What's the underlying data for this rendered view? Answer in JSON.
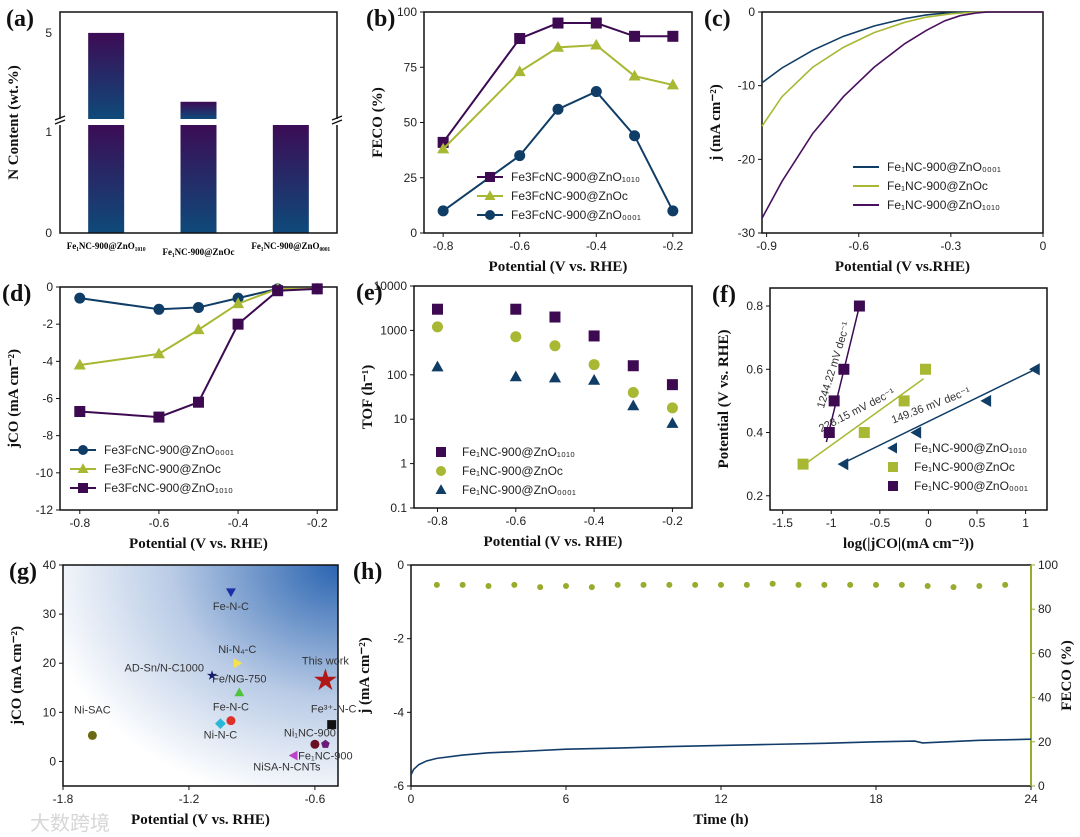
{
  "watermark": "大数跨境",
  "chart_data": [
    {
      "id": "a",
      "label": "(a)",
      "type": "bar",
      "ylabel": "N Content (wt.%)",
      "categories": [
        "Fe₁NC-900@ZnO₁₀₁₀",
        "Fe₁NC-900@ZnOc",
        "Fe₁NC-900@ZnO₀₀₀₁"
      ],
      "values": [
        5.0,
        2.6,
        1.1
      ],
      "yticks": [
        "0",
        "1",
        "5"
      ],
      "ylim": [
        0,
        5.3
      ],
      "axis_break": true,
      "colors": {
        "top": "#3d0b55",
        "bottom": "#0e4a7a"
      }
    },
    {
      "id": "b",
      "label": "(b)",
      "type": "line",
      "xlabel": "Potential (V vs. RHE)",
      "ylabel": "FECO (%)",
      "xlim": [
        -0.85,
        -0.15
      ],
      "ylim": [
        0,
        100
      ],
      "xticks": [
        -0.8,
        -0.6,
        -0.4,
        -0.2
      ],
      "yticks": [
        0,
        25,
        50,
        75,
        100
      ],
      "legend": "bottom-right",
      "series": [
        {
          "name": "Fe3FcNC-900@ZnO₁₀₁₀",
          "color": "#3d0a52",
          "marker": "square",
          "x": [
            -0.8,
            -0.6,
            -0.5,
            -0.4,
            -0.3,
            -0.2
          ],
          "y": [
            41,
            88,
            95,
            95,
            89,
            89
          ]
        },
        {
          "name": "Fe3FcNC-900@ZnOc",
          "color": "#a8b832",
          "marker": "triangle",
          "x": [
            -0.8,
            -0.6,
            -0.5,
            -0.4,
            -0.3,
            -0.2
          ],
          "y": [
            38,
            73,
            84,
            85,
            71,
            67
          ]
        },
        {
          "name": "Fe3FcNC-900@ZnO₀₀₀₁",
          "color": "#0f3d66",
          "marker": "circle",
          "x": [
            -0.8,
            -0.6,
            -0.5,
            -0.4,
            -0.3,
            -0.2
          ],
          "y": [
            10,
            35,
            56,
            64,
            44,
            10
          ]
        }
      ]
    },
    {
      "id": "c",
      "label": "(c)",
      "type": "line",
      "xlabel": "Potential (V vs.RHE)",
      "ylabel": "j (mA cm⁻²)",
      "xlim": [
        -0.915,
        0
      ],
      "ylim": [
        -30,
        0
      ],
      "xticks": [
        -0.9,
        -0.6,
        -0.3,
        0.0
      ],
      "yticks": [
        -30,
        -20,
        -10,
        0
      ],
      "legend": "bottom-right",
      "series": [
        {
          "name": "Fe₁NC-900@ZnO₀₀₀₁",
          "color": "#0f3d66",
          "marker": "none",
          "x": [
            -0.915,
            -0.85,
            -0.75,
            -0.65,
            -0.55,
            -0.45,
            -0.38,
            -0.32,
            -0.28,
            -0.2,
            0
          ],
          "y": [
            -9.6,
            -7.6,
            -5.2,
            -3.3,
            -1.9,
            -0.9,
            -0.4,
            -0.15,
            -0.05,
            0,
            0
          ]
        },
        {
          "name": "Fe₁NC-900@ZnOc",
          "color": "#a8b832",
          "marker": "none",
          "x": [
            -0.915,
            -0.85,
            -0.75,
            -0.65,
            -0.55,
            -0.45,
            -0.38,
            -0.3,
            -0.25,
            -0.2,
            0
          ],
          "y": [
            -15.5,
            -11.5,
            -7.5,
            -4.8,
            -2.8,
            -1.4,
            -0.7,
            -0.25,
            -0.1,
            0,
            0
          ]
        },
        {
          "name": "Fe₁NC-900@ZnO₁₀₁₀",
          "color": "#4a1060",
          "marker": "none",
          "x": [
            -0.915,
            -0.85,
            -0.75,
            -0.65,
            -0.55,
            -0.45,
            -0.38,
            -0.32,
            -0.27,
            -0.22,
            -0.18,
            0
          ],
          "y": [
            -28,
            -23,
            -16.5,
            -11.5,
            -7.5,
            -4.3,
            -2.5,
            -1.2,
            -0.5,
            -0.15,
            0,
            0
          ]
        }
      ]
    },
    {
      "id": "d",
      "label": "(d)",
      "type": "line",
      "xlabel": "Potential (V vs. RHE)",
      "ylabel": "jCO (mA cm⁻²)",
      "xlim": [
        -0.85,
        -0.15
      ],
      "ylim": [
        -12,
        0
      ],
      "xticks": [
        -0.8,
        -0.6,
        -0.4,
        -0.2
      ],
      "yticks": [
        -12,
        -10,
        -8,
        -6,
        -4,
        -2,
        0
      ],
      "legend": "bottom-left",
      "series": [
        {
          "name": "Fe3FcNC-900@ZnO₀₀₀₁",
          "color": "#0f3d66",
          "marker": "circle",
          "x": [
            -0.8,
            -0.6,
            -0.5,
            -0.4,
            -0.3,
            -0.2
          ],
          "y": [
            -0.6,
            -1.2,
            -1.1,
            -0.6,
            -0.1,
            -0.1
          ]
        },
        {
          "name": "Fe3FcNC-900@ZnOc",
          "color": "#a8b832",
          "marker": "triangle",
          "x": [
            -0.8,
            -0.6,
            -0.5,
            -0.4,
            -0.3,
            -0.2
          ],
          "y": [
            -4.2,
            -3.6,
            -2.3,
            -0.9,
            -0.1,
            -0.1
          ]
        },
        {
          "name": "Fe3FcNC-900@ZnO₁₀₁₀",
          "color": "#3d0a52",
          "marker": "square",
          "x": [
            -0.8,
            -0.6,
            -0.5,
            -0.4,
            -0.3,
            -0.2
          ],
          "y": [
            -6.7,
            -7.0,
            -6.2,
            -2.0,
            -0.2,
            -0.1
          ]
        }
      ]
    },
    {
      "id": "e",
      "label": "(e)",
      "type": "scatter",
      "xlabel": "Potential (V vs. RHE)",
      "ylabel": "TOF (h⁻¹)",
      "xlim": [
        -0.86,
        -0.15
      ],
      "ylim": [
        0.1,
        10000
      ],
      "yscale": "log",
      "xticks": [
        -0.8,
        -0.6,
        -0.4,
        -0.2
      ],
      "yticks": [
        "0.1",
        "1",
        "10",
        "100",
        "1000",
        "10000"
      ],
      "legend": "bottom-left",
      "series": [
        {
          "name": "Fe₁NC-900@ZnO₁₀₁₀",
          "color": "#3d0a52",
          "marker": "square",
          "x": [
            -0.8,
            -0.6,
            -0.5,
            -0.4,
            -0.3,
            -0.2
          ],
          "y": [
            3000,
            3000,
            2000,
            750,
            160,
            60
          ]
        },
        {
          "name": "Fe₁NC-900@ZnOc",
          "color": "#a8b832",
          "marker": "circle",
          "x": [
            -0.8,
            -0.6,
            -0.5,
            -0.4,
            -0.3,
            -0.2
          ],
          "y": [
            1200,
            720,
            450,
            170,
            40,
            18
          ]
        },
        {
          "name": "Fe₁NC-900@ZnO₀₀₀₁",
          "color": "#0f3d66",
          "marker": "triangle",
          "x": [
            -0.8,
            -0.6,
            -0.5,
            -0.4,
            -0.3,
            -0.2
          ],
          "y": [
            150,
            90,
            85,
            75,
            20,
            8
          ]
        }
      ]
    },
    {
      "id": "f",
      "label": "(f)",
      "type": "scatter",
      "xlabel": "log(|jCO|(mA cm⁻²))",
      "ylabel": "Potential (V vs. RHE)",
      "xlim": [
        -1.63,
        1.22
      ],
      "ylim": [
        0.155,
        0.857
      ],
      "xticks": [
        -1.5,
        -1.0,
        -0.5,
        0.0,
        0.5,
        1.0
      ],
      "yticks": [
        0.2,
        0.4,
        0.6,
        0.8
      ],
      "legend": "bottom-right",
      "series": [
        {
          "name": "Fe₁NC-900@ZnO₁₀₁₀",
          "color": "#0f3d66",
          "marker": "triangle-left",
          "x": [
            -0.87,
            -0.12,
            0.6,
            1.1
          ],
          "y": [
            0.3,
            0.4,
            0.5,
            0.6
          ],
          "fit": [
            [
              -0.9,
              0.3
            ],
            [
              1.1,
              0.6
            ]
          ],
          "annotation": "149.36 mV dec⁻¹",
          "ann_angle": -21
        },
        {
          "name": "Fe₁NC-900@ZnOc",
          "color": "#a8b832",
          "marker": "square",
          "x": [
            -1.29,
            -0.66,
            -0.25,
            -0.03
          ],
          "y": [
            0.3,
            0.4,
            0.5,
            0.6
          ],
          "fit": [
            [
              -1.27,
              0.3
            ],
            [
              -0.05,
              0.57
            ]
          ],
          "annotation": "228.15 mV dec⁻¹",
          "ann_angle": -27
        },
        {
          "name": "Fe₁NC-900@ZnO₀₀₀₁",
          "color": "#3d0a52",
          "marker": "square",
          "x": [
            -1.02,
            -0.97,
            -0.87,
            -0.71
          ],
          "y": [
            0.4,
            0.5,
            0.6,
            0.8
          ],
          "fit": [
            [
              -1.05,
              0.37
            ],
            [
              -0.71,
              0.8
            ]
          ],
          "annotation": "1244.22 mV dec⁻¹",
          "ann_angle": -73
        }
      ]
    },
    {
      "id": "g",
      "label": "(g)",
      "type": "scatter",
      "xlabel": "Potential (V vs. RHE)",
      "ylabel": "jCO (mA cm⁻²)",
      "xlim": [
        -1.8,
        -0.49
      ],
      "ylim": [
        -5,
        40
      ],
      "xticks": [
        -1.8,
        -1.2,
        -0.6
      ],
      "yticks": [
        0,
        10,
        20,
        30,
        40
      ],
      "points": [
        {
          "name": "Ni-SAC",
          "x": -1.66,
          "y": 5.3,
          "color": "#6b6a12",
          "marker": "circle"
        },
        {
          "name": "Fe-N-C",
          "x": -1.0,
          "y": 34.5,
          "color": "#1c2fa8",
          "marker": "triangle-down"
        },
        {
          "name": "AD-Sn/N-C1000",
          "x": -1.09,
          "y": 17.5,
          "color": "#151a6e",
          "marker": "star"
        },
        {
          "name": "Ni-N₄-C",
          "x": -0.97,
          "y": 20,
          "color": "#f5e24a",
          "marker": "triangle-right"
        },
        {
          "name": "Fe/NG-750",
          "x": -0.96,
          "y": 14,
          "color": "#4cc43c",
          "marker": "triangle"
        },
        {
          "name": "This work",
          "x": -0.55,
          "y": 16.5,
          "color": "#b01818",
          "marker": "star-big"
        },
        {
          "name": "Fe-N-C",
          "x": -1.0,
          "y": 8.3,
          "color": "#e0302a",
          "marker": "circle"
        },
        {
          "name": "Ni-N-C",
          "x": -1.05,
          "y": 7.7,
          "color": "#2ab8d8",
          "marker": "diamond"
        },
        {
          "name": "Fe³⁺-N-C",
          "x": -0.52,
          "y": 7.5,
          "color": "#111",
          "marker": "square"
        },
        {
          "name": "Ni₁NC-900",
          "x": -0.6,
          "y": 3.5,
          "color": "#6b1020",
          "marker": "circle"
        },
        {
          "name": "Fe₁NC-900",
          "x": -0.55,
          "y": 3.5,
          "color": "#6a1a78",
          "marker": "pentagon"
        },
        {
          "name": "NiSA-N-CNTs",
          "x": -0.7,
          "y": 1.2,
          "color": "#c040c8",
          "marker": "triangle-left"
        }
      ]
    },
    {
      "id": "h",
      "label": "(h)",
      "type": "line",
      "xlabel": "Time (h)",
      "ylabel": "j (mA cm⁻²)",
      "ylabel_right": "FECO (%)",
      "xlim": [
        0,
        24
      ],
      "ylim": [
        -6,
        0
      ],
      "ylim_right": [
        0,
        100
      ],
      "xticks": [
        0,
        6,
        12,
        18,
        24
      ],
      "yticks": [
        -6,
        -4,
        -2,
        0
      ],
      "yticks_right": [
        0,
        20,
        40,
        60,
        80,
        100
      ],
      "series": [
        {
          "name": "j",
          "axis": "left",
          "color": "#123c6a",
          "marker": "none",
          "x": [
            0,
            0.1,
            0.3,
            0.6,
            1,
            2,
            3,
            4,
            6,
            8,
            10,
            12,
            14,
            16,
            18,
            19.5,
            19.8,
            22,
            24
          ],
          "y": [
            -5.7,
            -5.55,
            -5.42,
            -5.32,
            -5.25,
            -5.16,
            -5.1,
            -5.07,
            -5.0,
            -4.97,
            -4.93,
            -4.9,
            -4.87,
            -4.84,
            -4.8,
            -4.78,
            -4.83,
            -4.76,
            -4.73
          ]
        },
        {
          "name": "FECO",
          "axis": "right",
          "color": "#9aaa2c",
          "marker": "circle",
          "x": [
            1,
            2,
            3,
            4,
            5,
            6,
            7,
            8,
            9,
            10,
            11,
            12,
            13,
            14,
            15,
            16,
            17,
            18,
            19,
            20,
            21,
            22,
            23
          ],
          "y": [
            91,
            91,
            90.5,
            91,
            90,
            90.5,
            90,
            91,
            91,
            91,
            91,
            91,
            91,
            91.5,
            91,
            91,
            91,
            91,
            91,
            90.5,
            90,
            90.5,
            91
          ]
        }
      ]
    }
  ]
}
